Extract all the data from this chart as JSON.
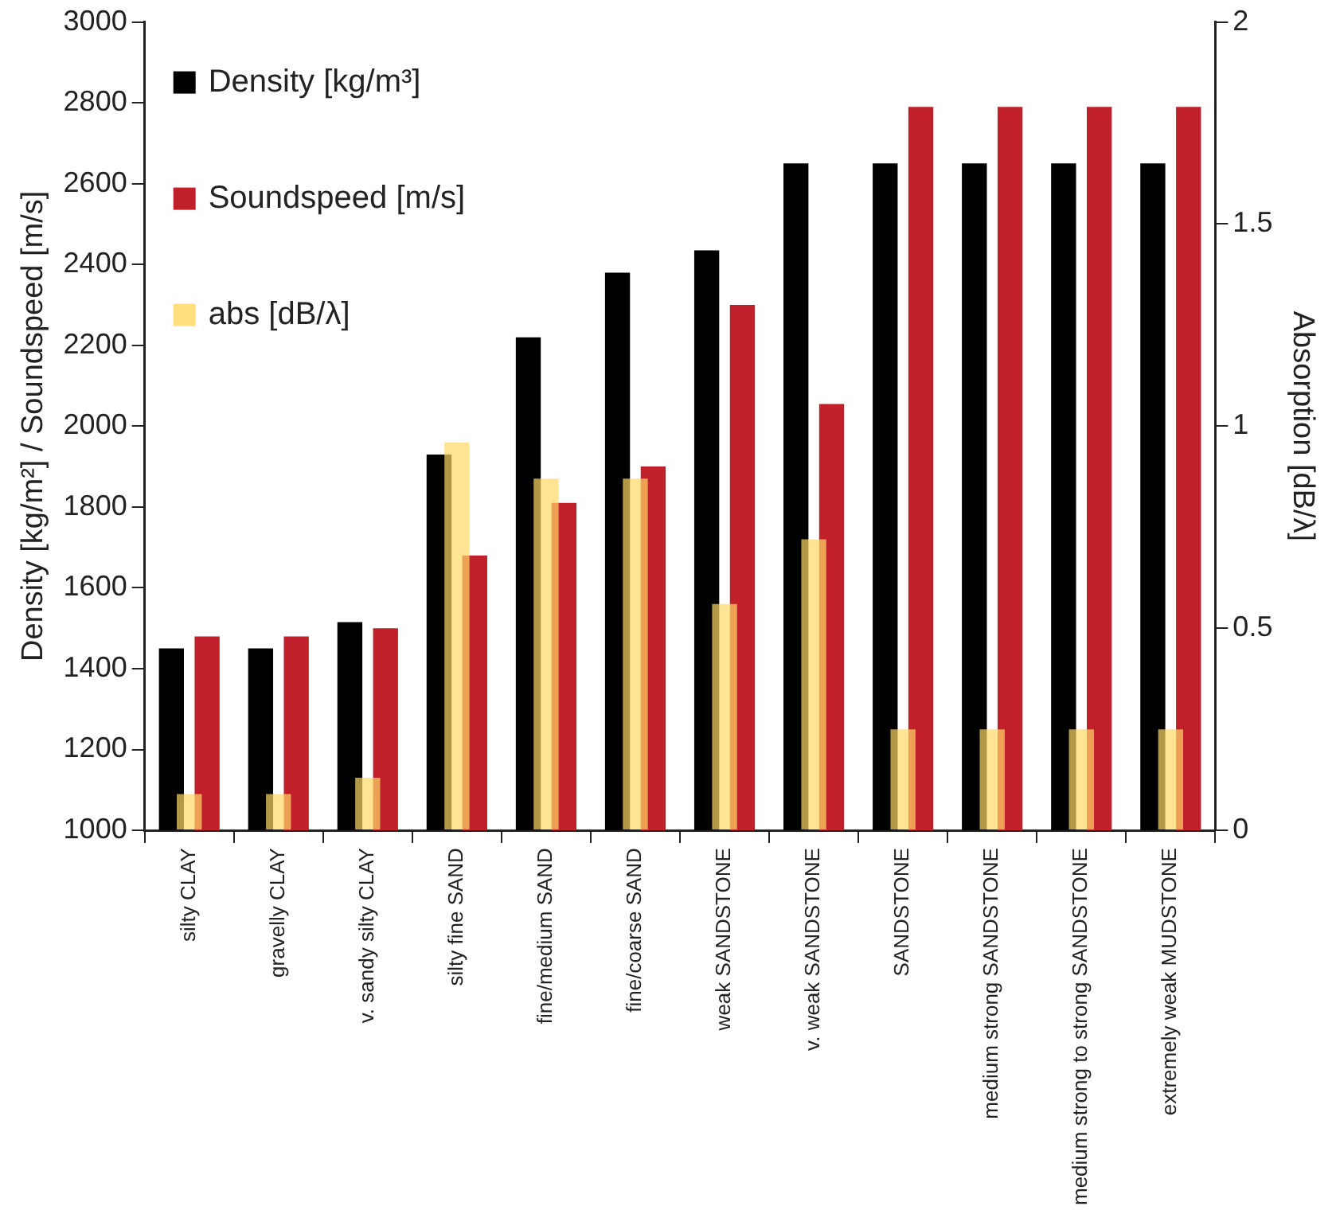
{
  "chart_data": {
    "type": "bar",
    "ylabel": "Density [kg/m²] / Soundspeed [m/s]",
    "y2label": "Absorption [dB/λ]",
    "categories": [
      "silty CLAY",
      "gravelly CLAY",
      "v. sandy silty CLAY",
      "silty fine SAND",
      "fine/medium SAND",
      "fine/coarse SAND",
      "weak SANDSTONE",
      "v. weak SANDSTONE",
      "SANDSTONE",
      "medium strong SANDSTONE",
      "medium strong to strong SANDSTONE",
      "extremely weak MUDSTONE"
    ],
    "series": [
      {
        "name": "Density [kg/m³]",
        "color": "#000000",
        "values": [
          1450,
          1450,
          1515,
          1930,
          2220,
          2380,
          2435,
          2650,
          2650,
          2650,
          2650,
          2650
        ]
      },
      {
        "name": "Soundspeed [m/s]",
        "color": "#c0202a",
        "values": [
          1480,
          1480,
          1500,
          1680,
          1810,
          1900,
          2300,
          2055,
          2790,
          2790,
          2790,
          2790
        ]
      },
      {
        "name": "abs [dB/λ]",
        "color": "#ffd966",
        "axis": "y2",
        "values": [
          0.09,
          0.09,
          0.13,
          0.96,
          0.87,
          0.87,
          0.56,
          0.72,
          0.25,
          0.25,
          0.25,
          0.25
        ]
      }
    ],
    "ylim": [
      1000,
      3000
    ],
    "yticks": [
      1000,
      1200,
      1400,
      1600,
      1800,
      2000,
      2200,
      2400,
      2600,
      2800,
      3000
    ],
    "y2lim": [
      0,
      2
    ],
    "y2ticks": [
      0,
      0.5,
      1,
      1.5,
      2
    ],
    "grid": false,
    "legend": "top left"
  }
}
